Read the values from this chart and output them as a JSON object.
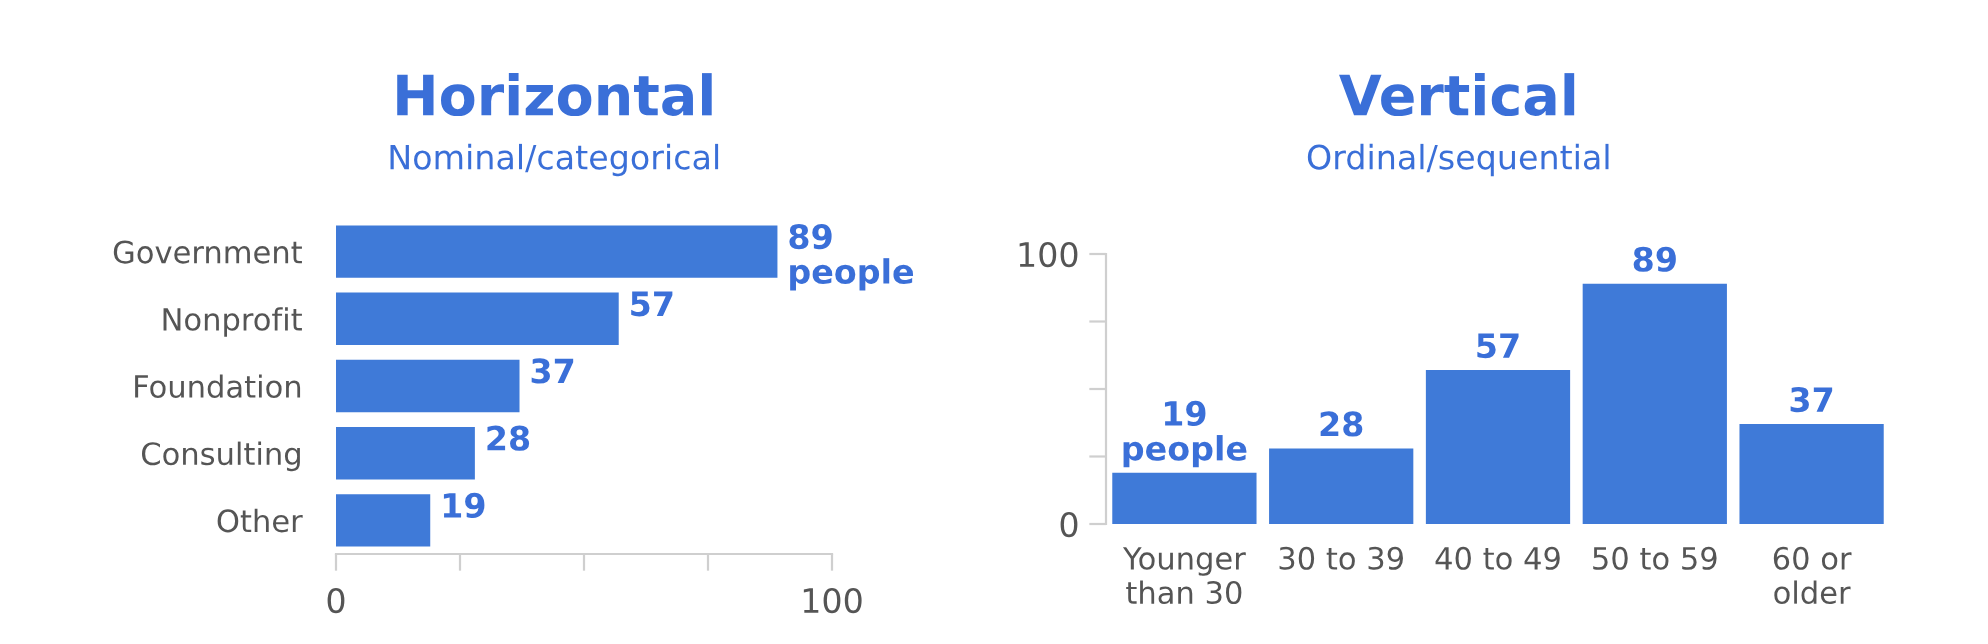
{
  "chart_data": [
    {
      "type": "bar",
      "title": "Horizontal",
      "subtitle": "Nominal/categorical",
      "orientation": "horizontal",
      "categories": [
        "Government",
        "Nonprofit",
        "Foundation",
        "Consulting",
        "Other"
      ],
      "values": [
        89,
        57,
        37,
        28,
        19
      ],
      "color": "#3f7ad8",
      "value_labels": [
        "89\npeople",
        "57",
        "37",
        "28",
        "19"
      ],
      "xlim": [
        0,
        100
      ],
      "xticks": [
        0,
        {
          "value": 25,
          "label": null
        },
        {
          "value": 50,
          "label": null
        },
        {
          "value": 75,
          "label": null
        },
        100
      ]
    },
    {
      "type": "bar",
      "title": "Vertical",
      "subtitle": "Ordinal/sequential",
      "categories": [
        "Younger\nthan 30",
        "30 to 39",
        "40 to 49",
        "50 to 59",
        "60 or\nolder"
      ],
      "values": [
        19,
        28,
        57,
        89,
        37
      ],
      "color": "#3f7ad8",
      "value_labels": [
        "19\npeople",
        "28",
        "57",
        "89",
        "37"
      ],
      "ylim": [
        0,
        100
      ],
      "yticks": [
        0,
        {
          "value": 25,
          "label": null
        },
        {
          "value": 50,
          "label": null
        },
        {
          "value": 75,
          "label": null
        },
        100
      ]
    }
  ]
}
